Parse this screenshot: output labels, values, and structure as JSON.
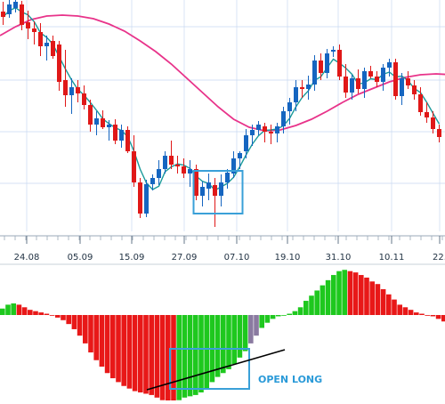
{
  "chart_data": [
    {
      "type": "candlestick",
      "x_tick_labels": [
        "24.08",
        "05.09",
        "15.09",
        "27.09",
        "07.10",
        "19.10",
        "31.10",
        "10.11",
        "22."
      ],
      "colors": {
        "up": "#1565c0",
        "down": "#e01818",
        "ma_fast": "#1a9a9a",
        "ma_slow": "#e8338a",
        "grid": "#c8d8f0",
        "highlight": "#3aa0d8"
      },
      "candles": [
        {
          "o": 13,
          "h": 28,
          "l": 2,
          "c": 19
        },
        {
          "o": 16,
          "h": 20,
          "l": 0,
          "c": 5
        },
        {
          "o": 9,
          "h": 14,
          "l": 0,
          "c": 2
        },
        {
          "o": 5,
          "h": 34,
          "l": 1,
          "c": 28
        },
        {
          "o": 25,
          "h": 44,
          "l": 12,
          "c": 32
        },
        {
          "o": 32,
          "h": 50,
          "l": 24,
          "c": 36
        },
        {
          "o": 36,
          "h": 63,
          "l": 26,
          "c": 52
        },
        {
          "o": 52,
          "h": 68,
          "l": 40,
          "c": 48
        },
        {
          "o": 46,
          "h": 66,
          "l": 40,
          "c": 63
        },
        {
          "o": 50,
          "h": 102,
          "l": 46,
          "c": 92
        },
        {
          "o": 90,
          "h": 120,
          "l": 56,
          "c": 107
        },
        {
          "o": 107,
          "h": 128,
          "l": 88,
          "c": 98
        },
        {
          "o": 98,
          "h": 115,
          "l": 90,
          "c": 105
        },
        {
          "o": 105,
          "h": 123,
          "l": 96,
          "c": 118
        },
        {
          "o": 118,
          "h": 148,
          "l": 112,
          "c": 140
        },
        {
          "o": 140,
          "h": 152,
          "l": 125,
          "c": 133
        },
        {
          "o": 133,
          "h": 145,
          "l": 124,
          "c": 143
        },
        {
          "o": 143,
          "h": 158,
          "l": 135,
          "c": 140
        },
        {
          "o": 140,
          "h": 162,
          "l": 134,
          "c": 158
        },
        {
          "o": 158,
          "h": 166,
          "l": 140,
          "c": 146
        },
        {
          "o": 146,
          "h": 172,
          "l": 142,
          "c": 170
        },
        {
          "o": 170,
          "h": 210,
          "l": 152,
          "c": 205
        },
        {
          "o": 205,
          "h": 245,
          "l": 200,
          "c": 240
        },
        {
          "o": 240,
          "h": 244,
          "l": 202,
          "c": 207
        },
        {
          "o": 207,
          "h": 214,
          "l": 196,
          "c": 200
        },
        {
          "o": 200,
          "h": 208,
          "l": 180,
          "c": 190
        },
        {
          "o": 190,
          "h": 195,
          "l": 170,
          "c": 175
        },
        {
          "o": 175,
          "h": 190,
          "l": 158,
          "c": 185
        },
        {
          "o": 185,
          "h": 195,
          "l": 175,
          "c": 187
        },
        {
          "o": 187,
          "h": 200,
          "l": 178,
          "c": 195
        },
        {
          "o": 195,
          "h": 210,
          "l": 180,
          "c": 190
        },
        {
          "o": 190,
          "h": 225,
          "l": 185,
          "c": 220
        },
        {
          "o": 220,
          "h": 232,
          "l": 204,
          "c": 210
        },
        {
          "o": 212,
          "h": 225,
          "l": 195,
          "c": 205
        },
        {
          "o": 208,
          "h": 255,
          "l": 200,
          "c": 220
        },
        {
          "o": 220,
          "h": 232,
          "l": 196,
          "c": 205
        },
        {
          "o": 205,
          "h": 212,
          "l": 190,
          "c": 194
        },
        {
          "o": 195,
          "h": 200,
          "l": 170,
          "c": 178
        },
        {
          "o": 178,
          "h": 190,
          "l": 170,
          "c": 172
        },
        {
          "o": 170,
          "h": 178,
          "l": 145,
          "c": 152
        },
        {
          "o": 152,
          "h": 164,
          "l": 140,
          "c": 146
        },
        {
          "o": 146,
          "h": 152,
          "l": 136,
          "c": 140
        },
        {
          "o": 142,
          "h": 160,
          "l": 138,
          "c": 148
        },
        {
          "o": 148,
          "h": 162,
          "l": 140,
          "c": 150
        },
        {
          "o": 150,
          "h": 160,
          "l": 138,
          "c": 142
        },
        {
          "o": 142,
          "h": 150,
          "l": 120,
          "c": 125
        },
        {
          "o": 125,
          "h": 140,
          "l": 110,
          "c": 115
        },
        {
          "o": 115,
          "h": 125,
          "l": 90,
          "c": 98
        },
        {
          "o": 98,
          "h": 110,
          "l": 90,
          "c": 100
        },
        {
          "o": 100,
          "h": 112,
          "l": 85,
          "c": 95
        },
        {
          "o": 95,
          "h": 102,
          "l": 62,
          "c": 68
        },
        {
          "o": 68,
          "h": 90,
          "l": 60,
          "c": 82
        },
        {
          "o": 82,
          "h": 88,
          "l": 55,
          "c": 60
        },
        {
          "o": 58,
          "h": 64,
          "l": 52,
          "c": 56
        },
        {
          "o": 56,
          "h": 90,
          "l": 50,
          "c": 86
        },
        {
          "o": 86,
          "h": 110,
          "l": 72,
          "c": 104
        },
        {
          "o": 104,
          "h": 112,
          "l": 84,
          "c": 88
        },
        {
          "o": 88,
          "h": 105,
          "l": 78,
          "c": 100
        },
        {
          "o": 100,
          "h": 110,
          "l": 76,
          "c": 80
        },
        {
          "o": 80,
          "h": 88,
          "l": 74,
          "c": 86
        },
        {
          "o": 86,
          "h": 98,
          "l": 80,
          "c": 92
        },
        {
          "o": 92,
          "h": 102,
          "l": 72,
          "c": 76
        },
        {
          "o": 76,
          "h": 86,
          "l": 66,
          "c": 70
        },
        {
          "o": 70,
          "h": 112,
          "l": 66,
          "c": 108
        },
        {
          "o": 108,
          "h": 118,
          "l": 82,
          "c": 88
        },
        {
          "o": 88,
          "h": 100,
          "l": 80,
          "c": 96
        },
        {
          "o": 96,
          "h": 112,
          "l": 90,
          "c": 106
        },
        {
          "o": 106,
          "h": 130,
          "l": 98,
          "c": 126
        },
        {
          "o": 126,
          "h": 138,
          "l": 115,
          "c": 132
        },
        {
          "o": 132,
          "h": 150,
          "l": 125,
          "c": 145
        },
        {
          "o": 145,
          "h": 160,
          "l": 140,
          "c": 154
        }
      ],
      "ma_slow": [
        40,
        30,
        22,
        18,
        17,
        18,
        21,
        27,
        35,
        46,
        58,
        72,
        88,
        104,
        120,
        134,
        143,
        147,
        146,
        141,
        134,
        125,
        115,
        106,
        99,
        92,
        87,
        84,
        83,
        84
      ],
      "highlight_box": {
        "from_candle": 31,
        "to_candle": 38,
        "low_value": 216,
        "high_value": 256
      }
    },
    {
      "type": "histogram",
      "colors": {
        "positive_up": "#1ec81e",
        "negative_down": "#e81818",
        "negative_up": "#1ec81e",
        "neutral": "#8a7aa0"
      },
      "values": [
        5,
        8,
        9,
        8,
        6,
        4,
        3,
        2,
        1,
        0,
        -2,
        -4,
        -7,
        -11,
        -16,
        -22,
        -29,
        -35,
        -40,
        -45,
        -49,
        -52,
        -55,
        -57,
        -59,
        -60,
        -61,
        -62,
        -64,
        -66,
        -69,
        -70,
        -66,
        -64,
        -63,
        -62,
        -60,
        -57,
        -52,
        -48,
        -45,
        -42,
        -38,
        -33,
        -28,
        -22,
        -16,
        -10,
        -6,
        -3,
        -1,
        0,
        1,
        3,
        6,
        11,
        15,
        19,
        23,
        27,
        31,
        34,
        35,
        34,
        33,
        31,
        29,
        26,
        24,
        20,
        16,
        12,
        8,
        6,
        4,
        2,
        1,
        0,
        -1,
        -3,
        -5
      ],
      "annotation": {
        "text": "OPEN LONG",
        "color": "#2a9ad8"
      },
      "highlight_box": {
        "from_bar": 47,
        "to_bar": 66,
        "low_value": -70,
        "high_value": -10
      },
      "trendline_color": "#000000"
    }
  ]
}
